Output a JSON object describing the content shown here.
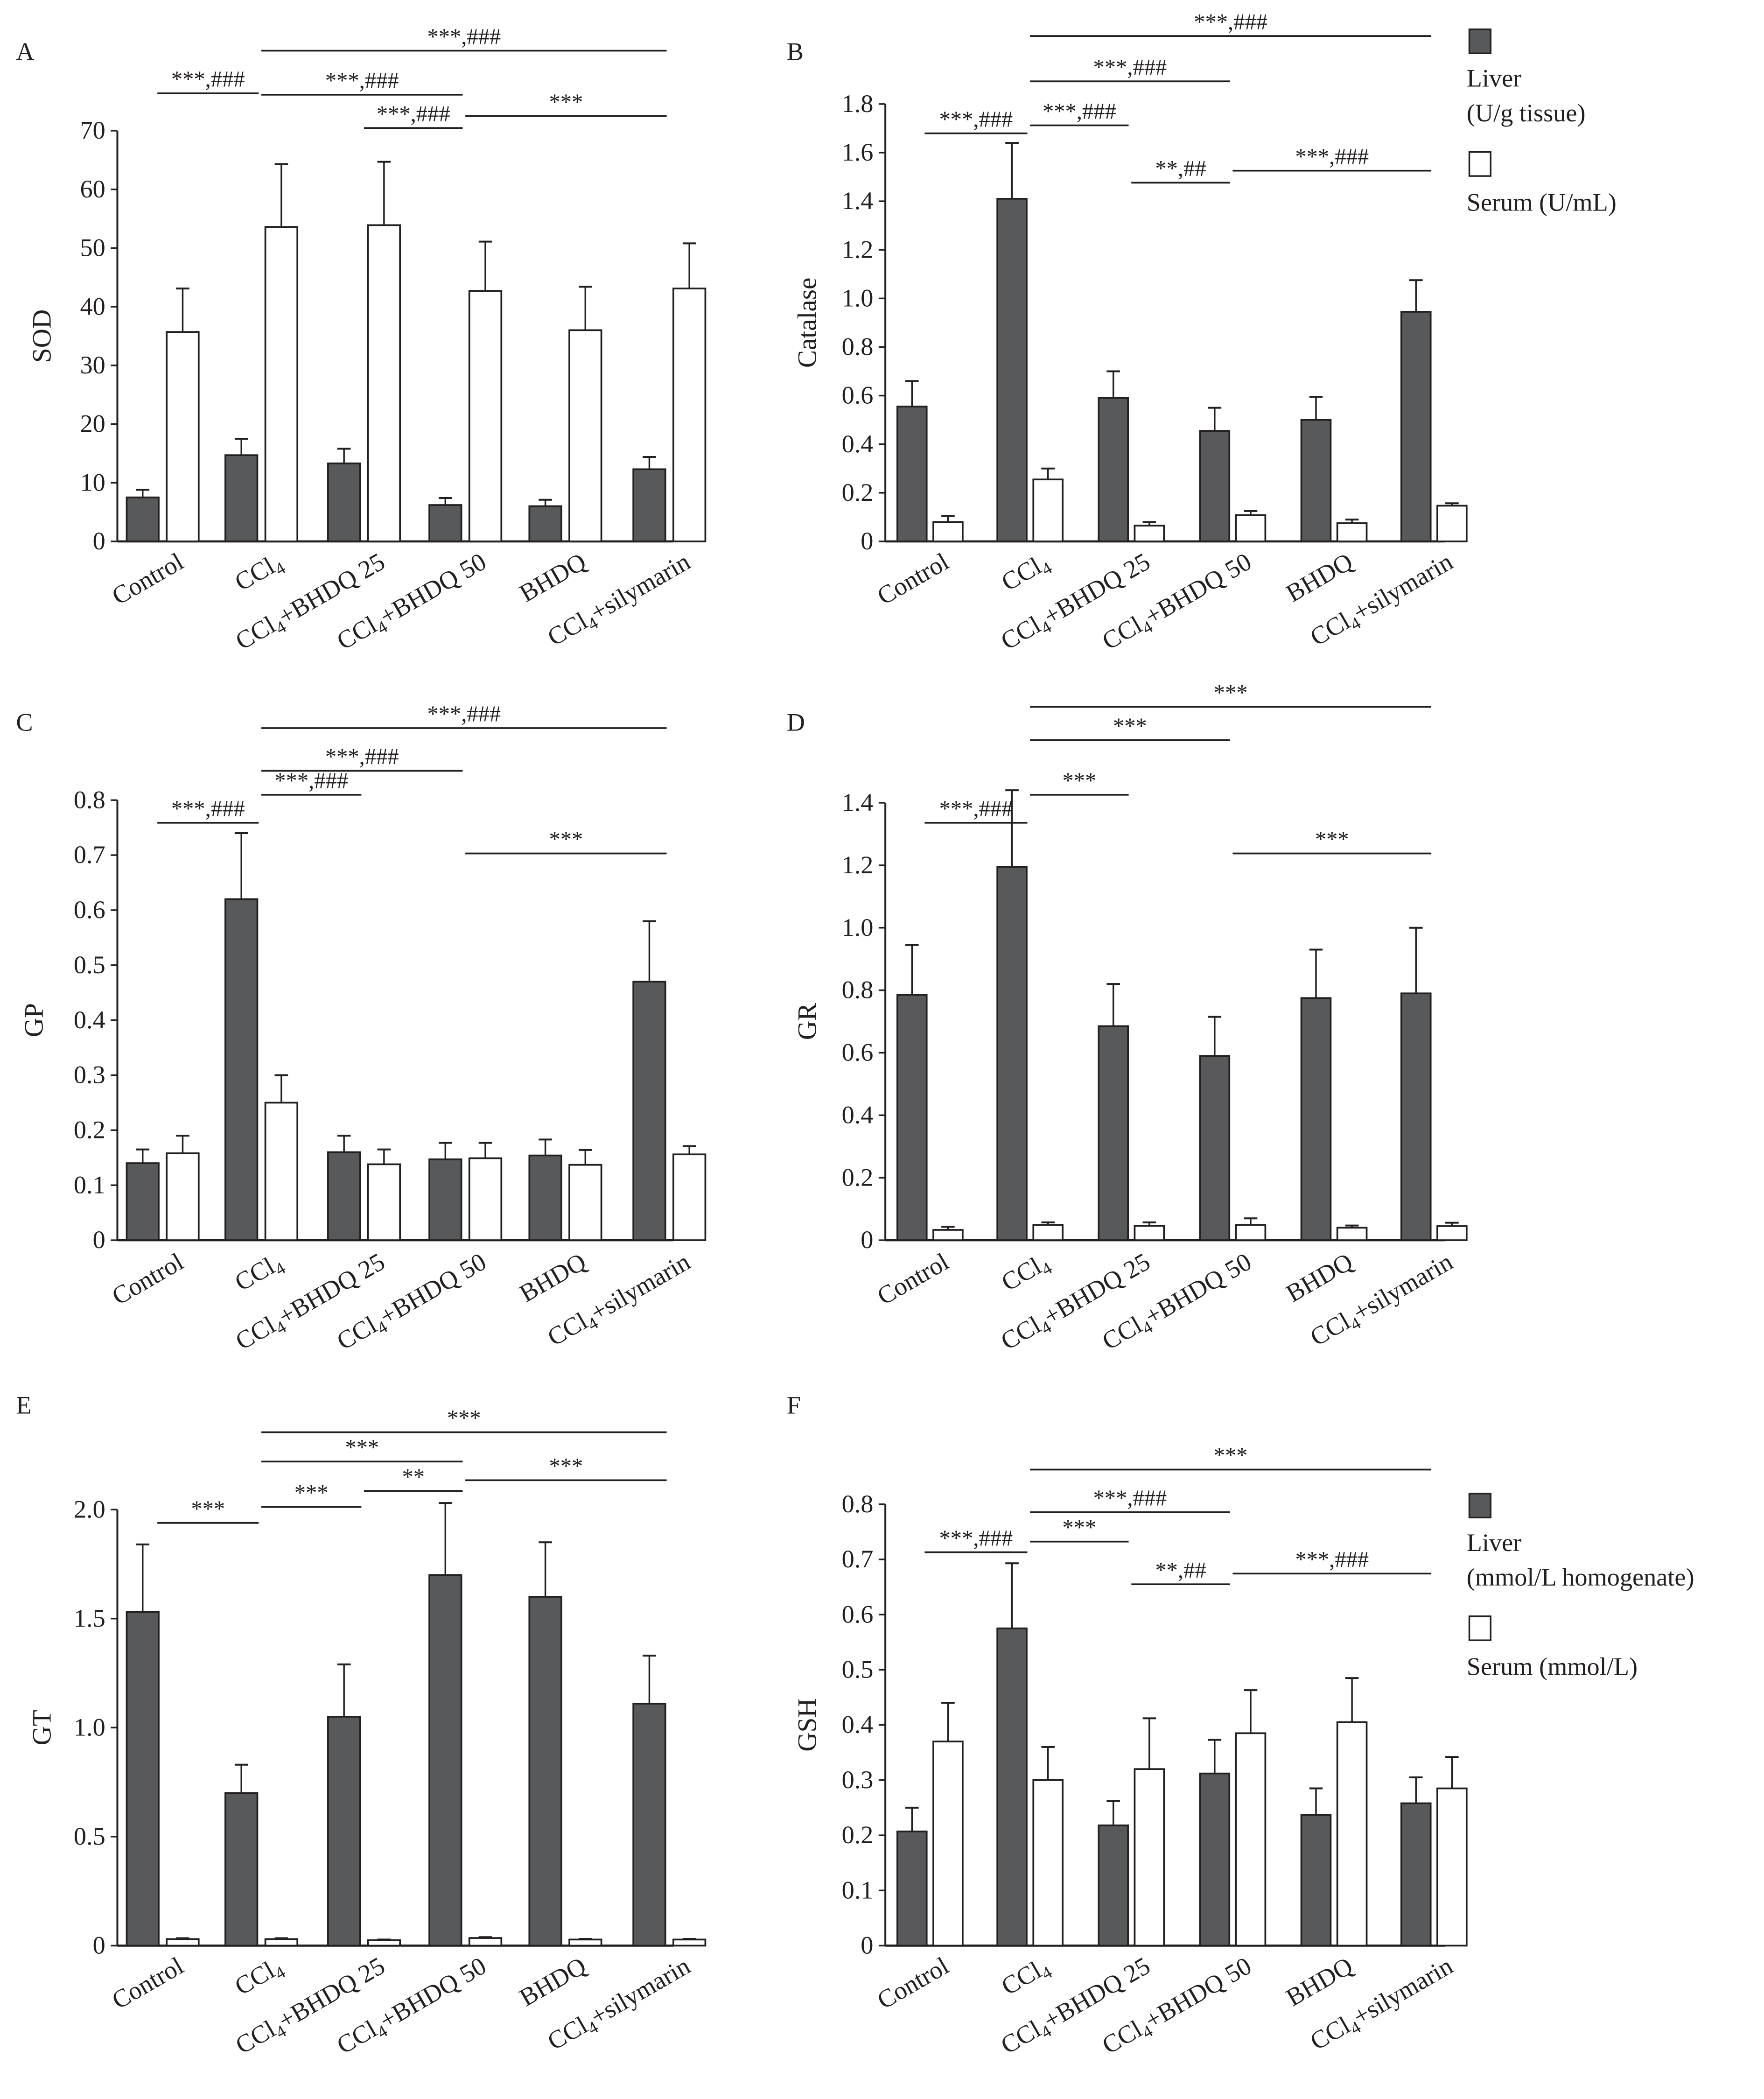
{
  "figure": {
    "groups": [
      "Control",
      "CCl4",
      "CCl4+BHDQ 25",
      "CCl4+BHDQ 50",
      "BHDQ",
      "CCl4+silymarin"
    ],
    "group_labels": [
      {
        "pre": "Control",
        "sub": "",
        "post": ""
      },
      {
        "pre": "CCl",
        "sub": "4",
        "post": ""
      },
      {
        "pre": "CCl",
        "sub": "4",
        "post": "+BHDQ 25"
      },
      {
        "pre": "CCl",
        "sub": "4",
        "post": "+BHDQ 50"
      },
      {
        "pre": "BHDQ",
        "sub": "",
        "post": ""
      },
      {
        "pre": "CCl",
        "sub": "4",
        "post": "+silymarin"
      }
    ],
    "colors": {
      "liver": "#58595b",
      "serum": "#ffffff",
      "stroke": "#231f20"
    },
    "legend_top": {
      "liver": "Liver",
      "liver_unit": "(U/g tissue)",
      "serum": "Serum (U/mL)"
    },
    "legend_bottom": {
      "liver": "Liver",
      "liver_unit": "(mmol/L homogenate)",
      "serum": "Serum (mmol/L)"
    }
  },
  "chart_data": [
    {
      "panel": "A",
      "type": "bar",
      "title": "",
      "xlabel": "",
      "ylabel": "SOD",
      "ylim": [
        0,
        70
      ],
      "yticks": [
        0,
        10,
        20,
        30,
        40,
        50,
        60,
        70
      ],
      "tick_decimals": 0,
      "categories": [
        "Control",
        "CCl4",
        "CCl4+BHDQ 25",
        "CCl4+BHDQ 50",
        "BHDQ",
        "CCl4+silymarin"
      ],
      "series": [
        {
          "name": "Liver",
          "values": [
            7.5,
            14.7,
            13.3,
            6.2,
            6.0,
            12.3
          ],
          "error_upper": [
            8.8,
            17.5,
            15.8,
            7.4,
            7.1,
            14.4
          ]
        },
        {
          "name": "Serum",
          "values": [
            35.7,
            53.6,
            53.9,
            42.7,
            36.0,
            43.1
          ],
          "error_upper": [
            43.1,
            64.3,
            64.7,
            51.1,
            43.4,
            50.8
          ]
        }
      ],
      "significance": [
        {
          "from": 0,
          "to": 1,
          "label": "***,###",
          "level": 1
        },
        {
          "from": 1,
          "to": 3,
          "label": "***,###",
          "level": 2
        },
        {
          "from": 2,
          "to": 3,
          "label": "***,###",
          "level": 0
        },
        {
          "from": 3,
          "to": 5,
          "label": "***",
          "level": 1
        },
        {
          "from": 1,
          "to": 5,
          "label": "***,###",
          "level": 3
        }
      ],
      "legend": "none"
    },
    {
      "panel": "B",
      "type": "bar",
      "title": "",
      "xlabel": "",
      "ylabel": "Catalase",
      "ylim": [
        0,
        1.8
      ],
      "yticks": [
        0,
        0.2,
        0.4,
        0.6,
        0.8,
        1.0,
        1.2,
        1.4,
        1.6,
        1.8
      ],
      "tick_decimals": 1,
      "categories": [
        "Control",
        "CCl4",
        "CCl4+BHDQ 25",
        "CCl4+BHDQ 50",
        "BHDQ",
        "CCl4+silymarin"
      ],
      "series": [
        {
          "name": "Liver",
          "values": [
            0.555,
            1.41,
            0.59,
            0.455,
            0.5,
            0.945
          ],
          "error_upper": [
            0.66,
            1.64,
            0.7,
            0.55,
            0.595,
            1.075
          ]
        },
        {
          "name": "Serum",
          "values": [
            0.08,
            0.255,
            0.065,
            0.108,
            0.075,
            0.147
          ],
          "error_upper": [
            0.105,
            0.3,
            0.08,
            0.125,
            0.09,
            0.157
          ]
        }
      ],
      "significance": [
        {
          "from": 0,
          "to": 1,
          "label": "***,###",
          "level": 1
        },
        {
          "from": 1,
          "to": 2,
          "label": "***,###",
          "level": 2
        },
        {
          "from": 1,
          "to": 3,
          "label": "***,###",
          "level": 3
        },
        {
          "from": 1,
          "to": 5,
          "label": "***,###",
          "level": 4
        },
        {
          "from": 2,
          "to": 3,
          "label": "**,##",
          "level": 0
        },
        {
          "from": 3,
          "to": 5,
          "label": "***,###",
          "level": 0.5
        }
      ],
      "legend": "right"
    },
    {
      "panel": "C",
      "type": "bar",
      "title": "",
      "xlabel": "",
      "ylabel": "GP",
      "ylim": [
        0,
        0.8
      ],
      "yticks": [
        0,
        0.1,
        0.2,
        0.3,
        0.4,
        0.5,
        0.6,
        0.7,
        0.8
      ],
      "tick_decimals": 1,
      "categories": [
        "Control",
        "CCl4",
        "CCl4+BHDQ 25",
        "CCl4+BHDQ 50",
        "BHDQ",
        "CCl4+silymarin"
      ],
      "series": [
        {
          "name": "Liver",
          "values": [
            0.14,
            0.62,
            0.16,
            0.147,
            0.154,
            0.47
          ],
          "error_upper": [
            0.165,
            0.74,
            0.19,
            0.177,
            0.183,
            0.58
          ]
        },
        {
          "name": "Serum",
          "values": [
            0.158,
            0.25,
            0.138,
            0.149,
            0.137,
            0.156
          ],
          "error_upper": [
            0.19,
            0.3,
            0.165,
            0.177,
            0.164,
            0.171
          ]
        }
      ],
      "significance": [
        {
          "from": 0,
          "to": 1,
          "label": "***,###",
          "level": 1
        },
        {
          "from": 1,
          "to": 2,
          "label": "***,###",
          "level": 2
        },
        {
          "from": 1,
          "to": 3,
          "label": "***,###",
          "level": 3
        },
        {
          "from": 1,
          "to": 5,
          "label": "***,###",
          "level": 4
        },
        {
          "from": 3,
          "to": 5,
          "label": "***",
          "level": 0
        }
      ],
      "legend": "none"
    },
    {
      "panel": "D",
      "type": "bar",
      "title": "",
      "xlabel": "",
      "ylabel": "GR",
      "ylim": [
        0,
        1.4
      ],
      "yticks": [
        0,
        0.2,
        0.4,
        0.6,
        0.8,
        1.0,
        1.2,
        1.4
      ],
      "tick_decimals": 1,
      "categories": [
        "Control",
        "CCl4",
        "CCl4+BHDQ 25",
        "CCl4+BHDQ 50",
        "BHDQ",
        "CCl4+silymarin"
      ],
      "series": [
        {
          "name": "Liver",
          "values": [
            0.785,
            1.195,
            0.685,
            0.59,
            0.775,
            0.79
          ],
          "error_upper": [
            0.945,
            1.44,
            0.82,
            0.715,
            0.93,
            1.0
          ]
        },
        {
          "name": "Serum",
          "values": [
            0.033,
            0.049,
            0.046,
            0.049,
            0.04,
            0.045
          ],
          "error_upper": [
            0.043,
            0.057,
            0.057,
            0.07,
            0.047,
            0.056
          ]
        }
      ],
      "significance": [
        {
          "from": 0,
          "to": 1,
          "label": "***,###",
          "level": 1
        },
        {
          "from": 1,
          "to": 2,
          "label": "***",
          "level": 2
        },
        {
          "from": 1,
          "to": 3,
          "label": "***",
          "level": 3
        },
        {
          "from": 1,
          "to": 5,
          "label": "***",
          "level": 4
        },
        {
          "from": 3,
          "to": 5,
          "label": "***",
          "level": 0
        }
      ],
      "legend": "none"
    },
    {
      "panel": "E",
      "type": "bar",
      "title": "",
      "xlabel": "",
      "ylabel": "GT",
      "ylim": [
        0,
        2.0
      ],
      "yticks": [
        0,
        0.5,
        1.0,
        1.5,
        2.0
      ],
      "tick_decimals": 1,
      "categories": [
        "Control",
        "CCl4",
        "CCl4+BHDQ 25",
        "CCl4+BHDQ 50",
        "BHDQ",
        "CCl4+silymarin"
      ],
      "series": [
        {
          "name": "Liver",
          "values": [
            1.53,
            0.7,
            1.05,
            1.7,
            1.6,
            1.11
          ],
          "error_upper": [
            1.84,
            0.83,
            1.29,
            2.03,
            1.85,
            1.33
          ]
        },
        {
          "name": "Serum",
          "values": [
            0.03,
            0.03,
            0.025,
            0.035,
            0.028,
            0.028
          ],
          "error_upper": [
            0.034,
            0.034,
            0.028,
            0.039,
            0.031,
            0.031
          ]
        }
      ],
      "significance": [
        {
          "from": 0,
          "to": 1,
          "label": "***",
          "level": 0
        },
        {
          "from": 1,
          "to": 2,
          "label": "***",
          "level": 1
        },
        {
          "from": 2,
          "to": 3,
          "label": "**",
          "level": 2
        },
        {
          "from": 3,
          "to": 5,
          "label": "***",
          "level": 3
        },
        {
          "from": 1,
          "to": 3,
          "label": "***",
          "level": 4
        },
        {
          "from": 1,
          "to": 5,
          "label": "***",
          "level": 5
        }
      ],
      "legend": "none"
    },
    {
      "panel": "F",
      "type": "bar",
      "title": "",
      "xlabel": "",
      "ylabel": "GSH",
      "ylim": [
        0,
        0.8
      ],
      "yticks": [
        0,
        0.1,
        0.2,
        0.3,
        0.4,
        0.5,
        0.6,
        0.7,
        0.8
      ],
      "tick_decimals": 1,
      "categories": [
        "Control",
        "CCl4",
        "CCl4+BHDQ 25",
        "CCl4+BHDQ 50",
        "BHDQ",
        "CCl4+silymarin"
      ],
      "series": [
        {
          "name": "Liver",
          "values": [
            0.207,
            0.575,
            0.218,
            0.312,
            0.237,
            0.258
          ],
          "error_upper": [
            0.25,
            0.693,
            0.262,
            0.373,
            0.285,
            0.305
          ]
        },
        {
          "name": "Serum",
          "values": [
            0.37,
            0.3,
            0.32,
            0.385,
            0.405,
            0.285
          ],
          "error_upper": [
            0.44,
            0.36,
            0.412,
            0.463,
            0.485,
            0.342
          ]
        }
      ],
      "significance": [
        {
          "from": 0,
          "to": 1,
          "label": "***,###",
          "level": 1
        },
        {
          "from": 1,
          "to": 2,
          "label": "***",
          "level": 2
        },
        {
          "from": 1,
          "to": 3,
          "label": "***,###",
          "level": 3
        },
        {
          "from": 1,
          "to": 5,
          "label": "***",
          "level": 4
        },
        {
          "from": 2,
          "to": 3,
          "label": "**,##",
          "level": 0
        },
        {
          "from": 3,
          "to": 5,
          "label": "***,###",
          "level": 0.5
        }
      ],
      "legend": "right"
    }
  ]
}
